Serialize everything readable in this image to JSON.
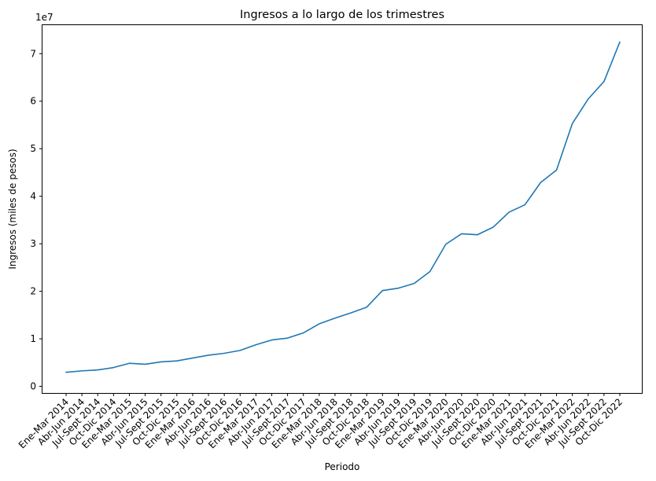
{
  "chart_data": {
    "type": "line",
    "title": "Ingresos a lo largo de los trimestres",
    "xlabel": "Periodo",
    "ylabel": "Ingresos (miles de pesos)",
    "y_offset_label": "1e7",
    "ylim": [
      -1400000,
      76000000
    ],
    "y_ticks": [
      0,
      10000000,
      20000000,
      30000000,
      40000000,
      50000000,
      60000000,
      70000000
    ],
    "y_tick_labels": [
      "0",
      "1",
      "2",
      "3",
      "4",
      "5",
      "6",
      "7"
    ],
    "grid": false,
    "line_color": "#1f77b4",
    "categories": [
      "Ene-Mar 2014",
      "Abr-Jun 2014",
      "Jul-Sept 2014",
      "Oct-Dic 2014",
      "Ene-Mar 2015",
      "Abr-Jun 2015",
      "Jul-Sept 2015",
      "Oct-Dic 2015",
      "Ene-Mar 2016",
      "Abr-Jun 2016",
      "Jul-Sept 2016",
      "Oct-Dic 2016",
      "Ene-Mar 2017",
      "Abr-Jun 2017",
      "Jul-Sept 2017",
      "Oct-Dic 2017",
      "Ene-Mar 2018",
      "Abr-Jun 2018",
      "Jul-Sept 2018",
      "Oct-Dic 2018",
      "Ene-Mar 2019",
      "Abr-Jun 2019",
      "Jul-Sept 2019",
      "Oct-Dic 2019",
      "Ene-Mar 2020",
      "Abr-Jun 2020",
      "Jul-Sept 2020",
      "Oct-Dic 2020",
      "Ene-Mar 2021",
      "Abr-Jun 2021",
      "Jul-Sept 2021",
      "Oct-Dic 2021",
      "Ene-Mar 2022",
      "Abr-Jun 2022",
      "Jul-Sept 2022",
      "Oct-Dic 2022"
    ],
    "values": [
      2950000,
      3250000,
      3450000,
      3950000,
      4850000,
      4650000,
      5150000,
      5350000,
      5950000,
      6550000,
      6950000,
      7550000,
      8750000,
      9750000,
      10150000,
      11250000,
      13150000,
      14350000,
      15450000,
      16650000,
      20150000,
      20650000,
      21650000,
      24150000,
      29900000,
      32100000,
      31900000,
      33500000,
      36650000,
      38200000,
      42900000,
      45500000,
      55300000,
      60450000,
      64150000,
      72450000
    ]
  }
}
